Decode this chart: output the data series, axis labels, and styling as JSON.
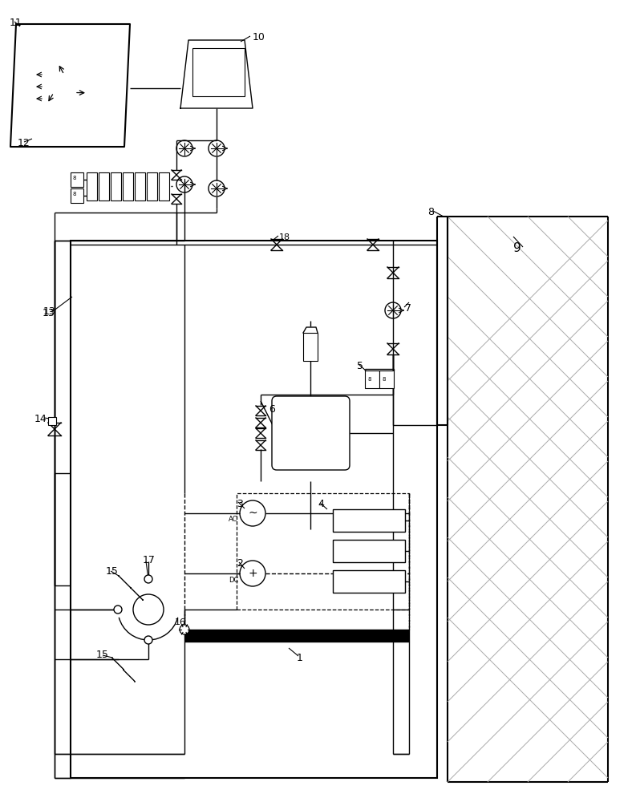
{
  "bg_color": "#ffffff",
  "line_color": "#000000",
  "gray_color": "#aaaaaa",
  "lw": 1.0,
  "lw2": 1.5,
  "lw3": 2.0
}
